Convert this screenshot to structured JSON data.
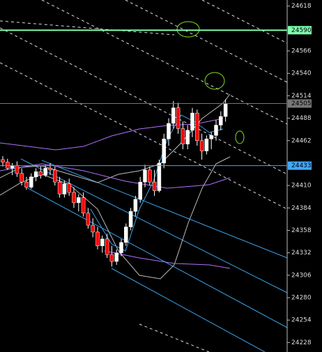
{
  "chart_data": {
    "type": "candlestick",
    "open": [
      24440,
      24437,
      24430,
      24433,
      24424,
      24414,
      24408,
      24420,
      24426,
      24422,
      24430,
      24428,
      24414,
      24400,
      24412,
      24402,
      24390,
      24396,
      24378,
      24364,
      24356,
      24340,
      24348,
      24330,
      24322,
      24332,
      24344,
      24362,
      24380,
      24394,
      24414,
      24428,
      24414,
      24404,
      24436,
      24464,
      24482,
      24500,
      24476,
      24458,
      24474,
      24494,
      24462,
      24450,
      24464,
      24468,
      24480,
      24490
    ],
    "high": [
      24444,
      24441,
      24436,
      24438,
      24430,
      24420,
      24424,
      24430,
      24432,
      24434,
      24436,
      24432,
      24420,
      24416,
      24418,
      24408,
      24400,
      24402,
      24384,
      24372,
      24362,
      24352,
      24354,
      24340,
      24336,
      24348,
      24366,
      24384,
      24398,
      24420,
      24434,
      24432,
      24428,
      24440,
      24470,
      24488,
      24508,
      24506,
      24484,
      24480,
      24500,
      24498,
      24470,
      24468,
      24472,
      24486,
      24496,
      24510
    ],
    "low": [
      24432,
      24428,
      24422,
      24420,
      24410,
      24405,
      24406,
      24415,
      24418,
      24420,
      24422,
      24410,
      24396,
      24396,
      24398,
      24384,
      24380,
      24374,
      24360,
      24350,
      24336,
      24332,
      24326,
      24316,
      24318,
      24328,
      24340,
      24358,
      24374,
      24390,
      24408,
      24410,
      24398,
      24402,
      24430,
      24456,
      24476,
      24470,
      24452,
      24452,
      24466,
      24456,
      24440,
      24446,
      24452,
      24462,
      24474,
      24484
    ],
    "close": [
      24437,
      24430,
      24433,
      24424,
      24414,
      24408,
      24420,
      24426,
      24422,
      24430,
      24428,
      24414,
      24400,
      24412,
      24402,
      24390,
      24396,
      24378,
      24364,
      24356,
      24340,
      24348,
      24330,
      24322,
      24332,
      24344,
      24362,
      24380,
      24394,
      24414,
      24428,
      24414,
      24404,
      24436,
      24464,
      24482,
      24500,
      24476,
      24458,
      24474,
      24494,
      24462,
      24450,
      24464,
      24468,
      24480,
      24490,
      24505
    ],
    "up_color": "#ffffff",
    "down_color": "#ff0000",
    "ylim": [
      24217,
      24625
    ],
    "yticks": [
      24618,
      24566,
      24540,
      24514,
      24488,
      24462,
      24410,
      24384,
      24358,
      24332,
      24306,
      24280,
      24254,
      24228
    ],
    "price_lines": [
      {
        "value": 24590,
        "color": "#80ffb0"
      },
      {
        "value": 24505,
        "color": "#777777"
      },
      {
        "value": 24433,
        "color": "#40a8ff"
      }
    ]
  }
}
